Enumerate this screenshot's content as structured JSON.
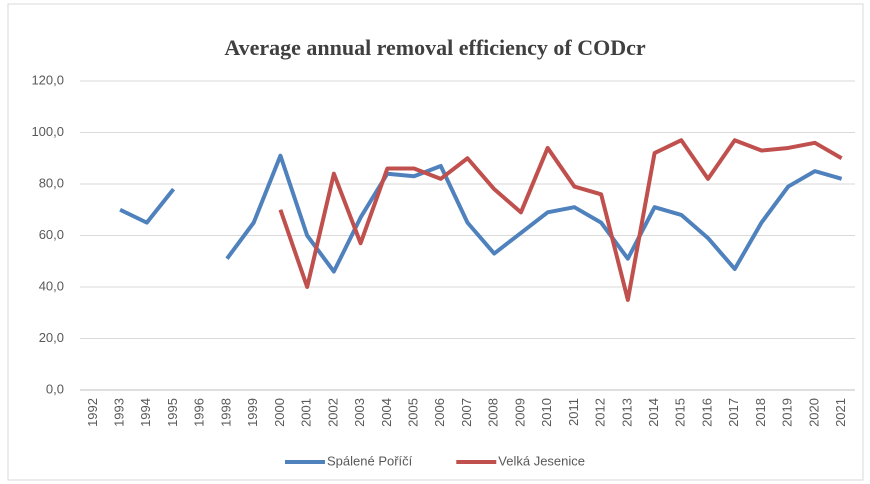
{
  "chart_data": {
    "type": "line",
    "title": "Average annual removal efficiency of CODcr",
    "categories": [
      "1992",
      "1993",
      "1994",
      "1995",
      "1996",
      "1998",
      "1999",
      "2000",
      "2001",
      "2002",
      "2003",
      "2004",
      "2005",
      "2006",
      "2007",
      "2008",
      "2009",
      "2010",
      "2011",
      "2012",
      "2013",
      "2014",
      "2015",
      "2016",
      "2017",
      "2018",
      "2019",
      "2020",
      "2021"
    ],
    "series": [
      {
        "name": "Spálené Poříčí",
        "color": "#4f81bd",
        "values": [
          null,
          70,
          65,
          78,
          null,
          51,
          65,
          91,
          60,
          46,
          67,
          84,
          83,
          87,
          65,
          53,
          61,
          69,
          71,
          65,
          51,
          71,
          68,
          59,
          47,
          65,
          79,
          85,
          82
        ]
      },
      {
        "name": "Velká Jesenice",
        "color": "#c0504d",
        "values": [
          null,
          null,
          null,
          null,
          null,
          null,
          null,
          70,
          40,
          84,
          57,
          86,
          86,
          82,
          90,
          78,
          69,
          94,
          79,
          76,
          35,
          92,
          97,
          82,
          97,
          93,
          94,
          96,
          90
        ]
      }
    ],
    "ylim": [
      0,
      120
    ],
    "yticks": [
      {
        "value": 0,
        "label": "0,0"
      },
      {
        "value": 20,
        "label": "20,0"
      },
      {
        "value": 40,
        "label": "40,0"
      },
      {
        "value": 60,
        "label": "60,0"
      },
      {
        "value": 80,
        "label": "80,0"
      },
      {
        "value": 100,
        "label": "100,0"
      },
      {
        "value": 120,
        "label": "120,0"
      }
    ],
    "grid": true,
    "legend": "bottom"
  }
}
